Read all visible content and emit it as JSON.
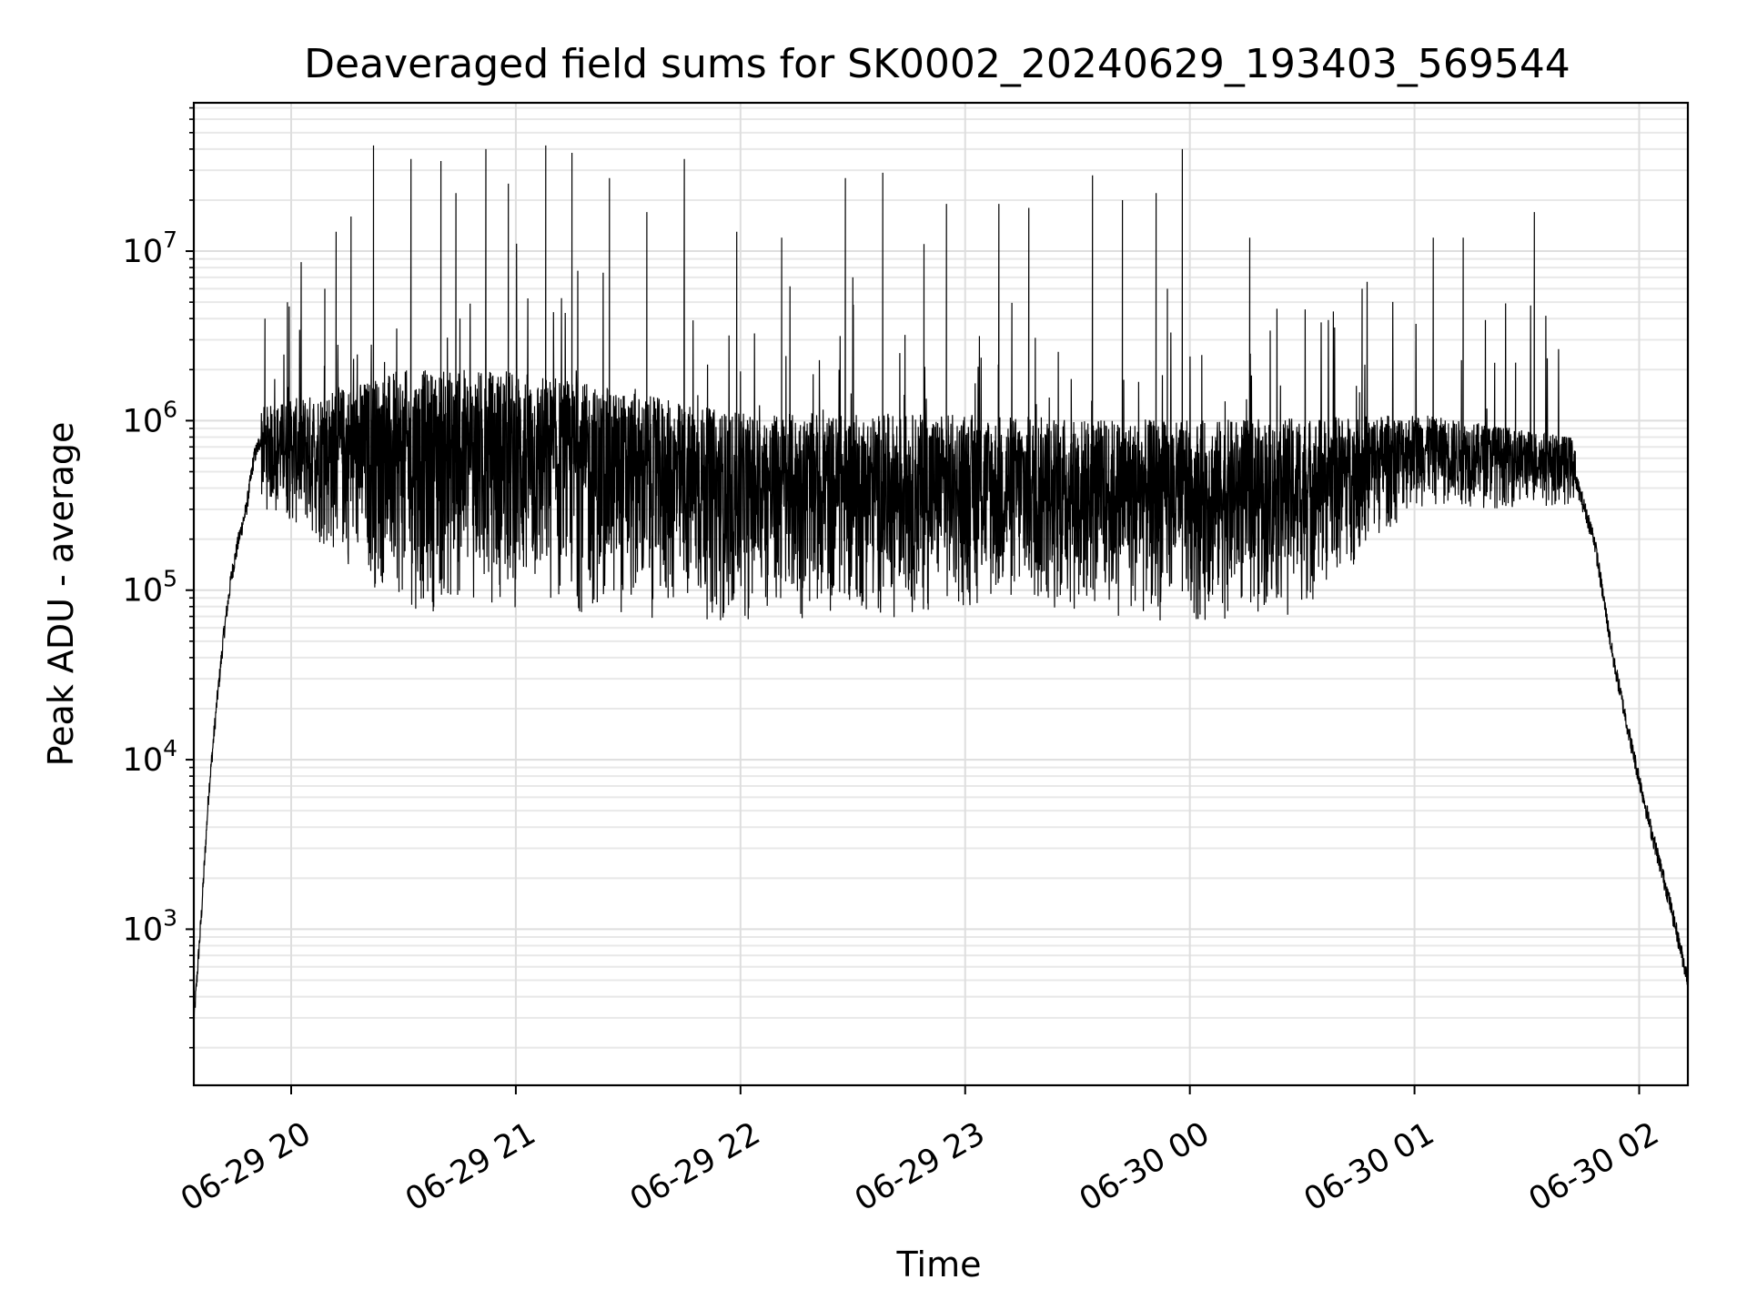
{
  "chart_data": {
    "type": "line",
    "title": "Deaveraged field sums for SK0002_20240629_193403_569544",
    "xlabel": "Time",
    "ylabel": "Peak ADU - average",
    "y_scale": "log",
    "ylim": [
      120,
      75000000
    ],
    "xlim": [
      "2024-06-29 19:34",
      "2024-06-30 02:13"
    ],
    "grid": true,
    "x_ticks": [
      {
        "t": "2024-06-29 20:00",
        "label": "06-29 20"
      },
      {
        "t": "2024-06-29 21:00",
        "label": "06-29 21"
      },
      {
        "t": "2024-06-29 22:00",
        "label": "06-29 22"
      },
      {
        "t": "2024-06-29 23:00",
        "label": "06-29 23"
      },
      {
        "t": "2024-06-30 00:00",
        "label": "06-30 00"
      },
      {
        "t": "2024-06-30 01:00",
        "label": "06-30 01"
      },
      {
        "t": "2024-06-30 02:00",
        "label": "06-30 02"
      }
    ],
    "y_ticks": [
      {
        "value": 1000,
        "base": "10",
        "exp": "3"
      },
      {
        "value": 10000,
        "base": "10",
        "exp": "4"
      },
      {
        "value": 100000,
        "base": "10",
        "exp": "5"
      },
      {
        "value": 1000000,
        "base": "10",
        "exp": "6"
      },
      {
        "value": 10000000,
        "base": "10",
        "exp": "7"
      }
    ],
    "series": [
      {
        "color": "#000000",
        "points": [
          [
            "2024-06-29 19:34",
            280
          ],
          [
            "2024-06-29 19:36",
            1200
          ],
          [
            "2024-06-29 19:38",
            6500
          ],
          [
            "2024-06-29 19:40",
            20000
          ],
          [
            "2024-06-29 19:42",
            55000
          ],
          [
            "2024-06-29 19:44",
            120000
          ],
          [
            "2024-06-29 19:46",
            200000
          ],
          [
            "2024-06-29 19:48",
            300000
          ],
          [
            "2024-06-29 19:50",
            600000
          ],
          [
            "2024-06-29 19:52",
            800000
          ],
          [
            "2024-06-29 19:55",
            700000
          ],
          [
            "2024-06-29 20:00",
            650000
          ],
          [
            "2024-06-29 20:15",
            600000
          ],
          [
            "2024-06-29 20:30",
            450000
          ],
          [
            "2024-06-29 21:00",
            400000
          ],
          [
            "2024-06-29 21:30",
            350000
          ],
          [
            "2024-06-29 22:00",
            300000
          ],
          [
            "2024-06-29 22:30",
            350000
          ],
          [
            "2024-06-29 23:00",
            400000
          ],
          [
            "2024-06-29 23:30",
            400000
          ],
          [
            "2024-06-30 00:00",
            350000
          ],
          [
            "2024-06-30 00:30",
            400000
          ],
          [
            "2024-06-30 01:00",
            500000
          ],
          [
            "2024-06-30 01:30",
            550000
          ],
          [
            "2024-06-30 01:43",
            450000
          ],
          [
            "2024-06-30 01:48",
            200000
          ],
          [
            "2024-06-30 01:53",
            40000
          ],
          [
            "2024-06-30 01:58",
            12000
          ],
          [
            "2024-06-30 02:03",
            4000
          ],
          [
            "2024-06-30 02:08",
            1500
          ],
          [
            "2024-06-30 02:13",
            500
          ]
        ],
        "noise_band_lo": [
          [
            "2024-06-29 19:52",
            300000
          ],
          [
            "2024-06-29 20:10",
            150000
          ],
          [
            "2024-06-29 20:30",
            70000
          ],
          [
            "2024-06-29 21:00",
            70000
          ],
          [
            "2024-06-29 22:00",
            60000
          ],
          [
            "2024-06-29 23:00",
            70000
          ],
          [
            "2024-06-30 00:00",
            60000
          ],
          [
            "2024-06-30 00:30",
            70000
          ],
          [
            "2024-06-30 01:00",
            300000
          ],
          [
            "2024-06-30 01:43",
            300000
          ]
        ],
        "noise_band_hi": [
          [
            "2024-06-29 19:52",
            1200000
          ],
          [
            "2024-06-29 20:30",
            2000000
          ],
          [
            "2024-06-29 21:00",
            2000000
          ],
          [
            "2024-06-29 22:00",
            1100000
          ],
          [
            "2024-06-29 23:00",
            1100000
          ],
          [
            "2024-06-30 00:00",
            1000000
          ],
          [
            "2024-06-30 01:00",
            1100000
          ],
          [
            "2024-06-30 01:43",
            800000
          ]
        ],
        "spikes": [
          [
            "2024-06-29 19:53",
            4000000
          ],
          [
            "2024-06-29 19:59",
            5000000
          ],
          [
            "2024-06-29 20:09",
            6000000
          ],
          [
            "2024-06-29 20:12",
            13000000
          ],
          [
            "2024-06-29 20:16",
            16000000
          ],
          [
            "2024-06-29 20:22",
            42000000
          ],
          [
            "2024-06-29 20:32",
            35000000
          ],
          [
            "2024-06-29 20:40",
            34000000
          ],
          [
            "2024-06-29 20:44",
            22000000
          ],
          [
            "2024-06-29 20:52",
            40000000
          ],
          [
            "2024-06-29 20:58",
            25000000
          ],
          [
            "2024-06-29 21:08",
            42000000
          ],
          [
            "2024-06-29 21:15",
            38000000
          ],
          [
            "2024-06-29 21:25",
            27000000
          ],
          [
            "2024-06-29 21:35",
            17000000
          ],
          [
            "2024-06-29 21:45",
            35000000
          ],
          [
            "2024-06-29 21:59",
            13000000
          ],
          [
            "2024-06-29 22:11",
            12000000
          ],
          [
            "2024-06-29 22:28",
            27000000
          ],
          [
            "2024-06-29 22:30",
            7000000
          ],
          [
            "2024-06-29 22:38",
            29000000
          ],
          [
            "2024-06-29 22:49",
            11000000
          ],
          [
            "2024-06-29 22:55",
            19000000
          ],
          [
            "2024-06-29 23:09",
            19000000
          ],
          [
            "2024-06-29 23:17",
            18000000
          ],
          [
            "2024-06-29 23:34",
            28000000
          ],
          [
            "2024-06-29 23:42",
            20000000
          ],
          [
            "2024-06-29 23:51",
            22000000
          ],
          [
            "2024-06-29 23:54",
            6000000
          ],
          [
            "2024-06-29 23:58",
            40000000
          ],
          [
            "2024-06-30 00:16",
            12000000
          ],
          [
            "2024-06-30 00:46",
            6000000
          ],
          [
            "2024-06-30 01:05",
            12000000
          ],
          [
            "2024-06-30 01:13",
            12000000
          ],
          [
            "2024-06-30 01:27",
            2200000
          ],
          [
            "2024-06-30 01:32",
            17000000
          ]
        ]
      }
    ]
  }
}
